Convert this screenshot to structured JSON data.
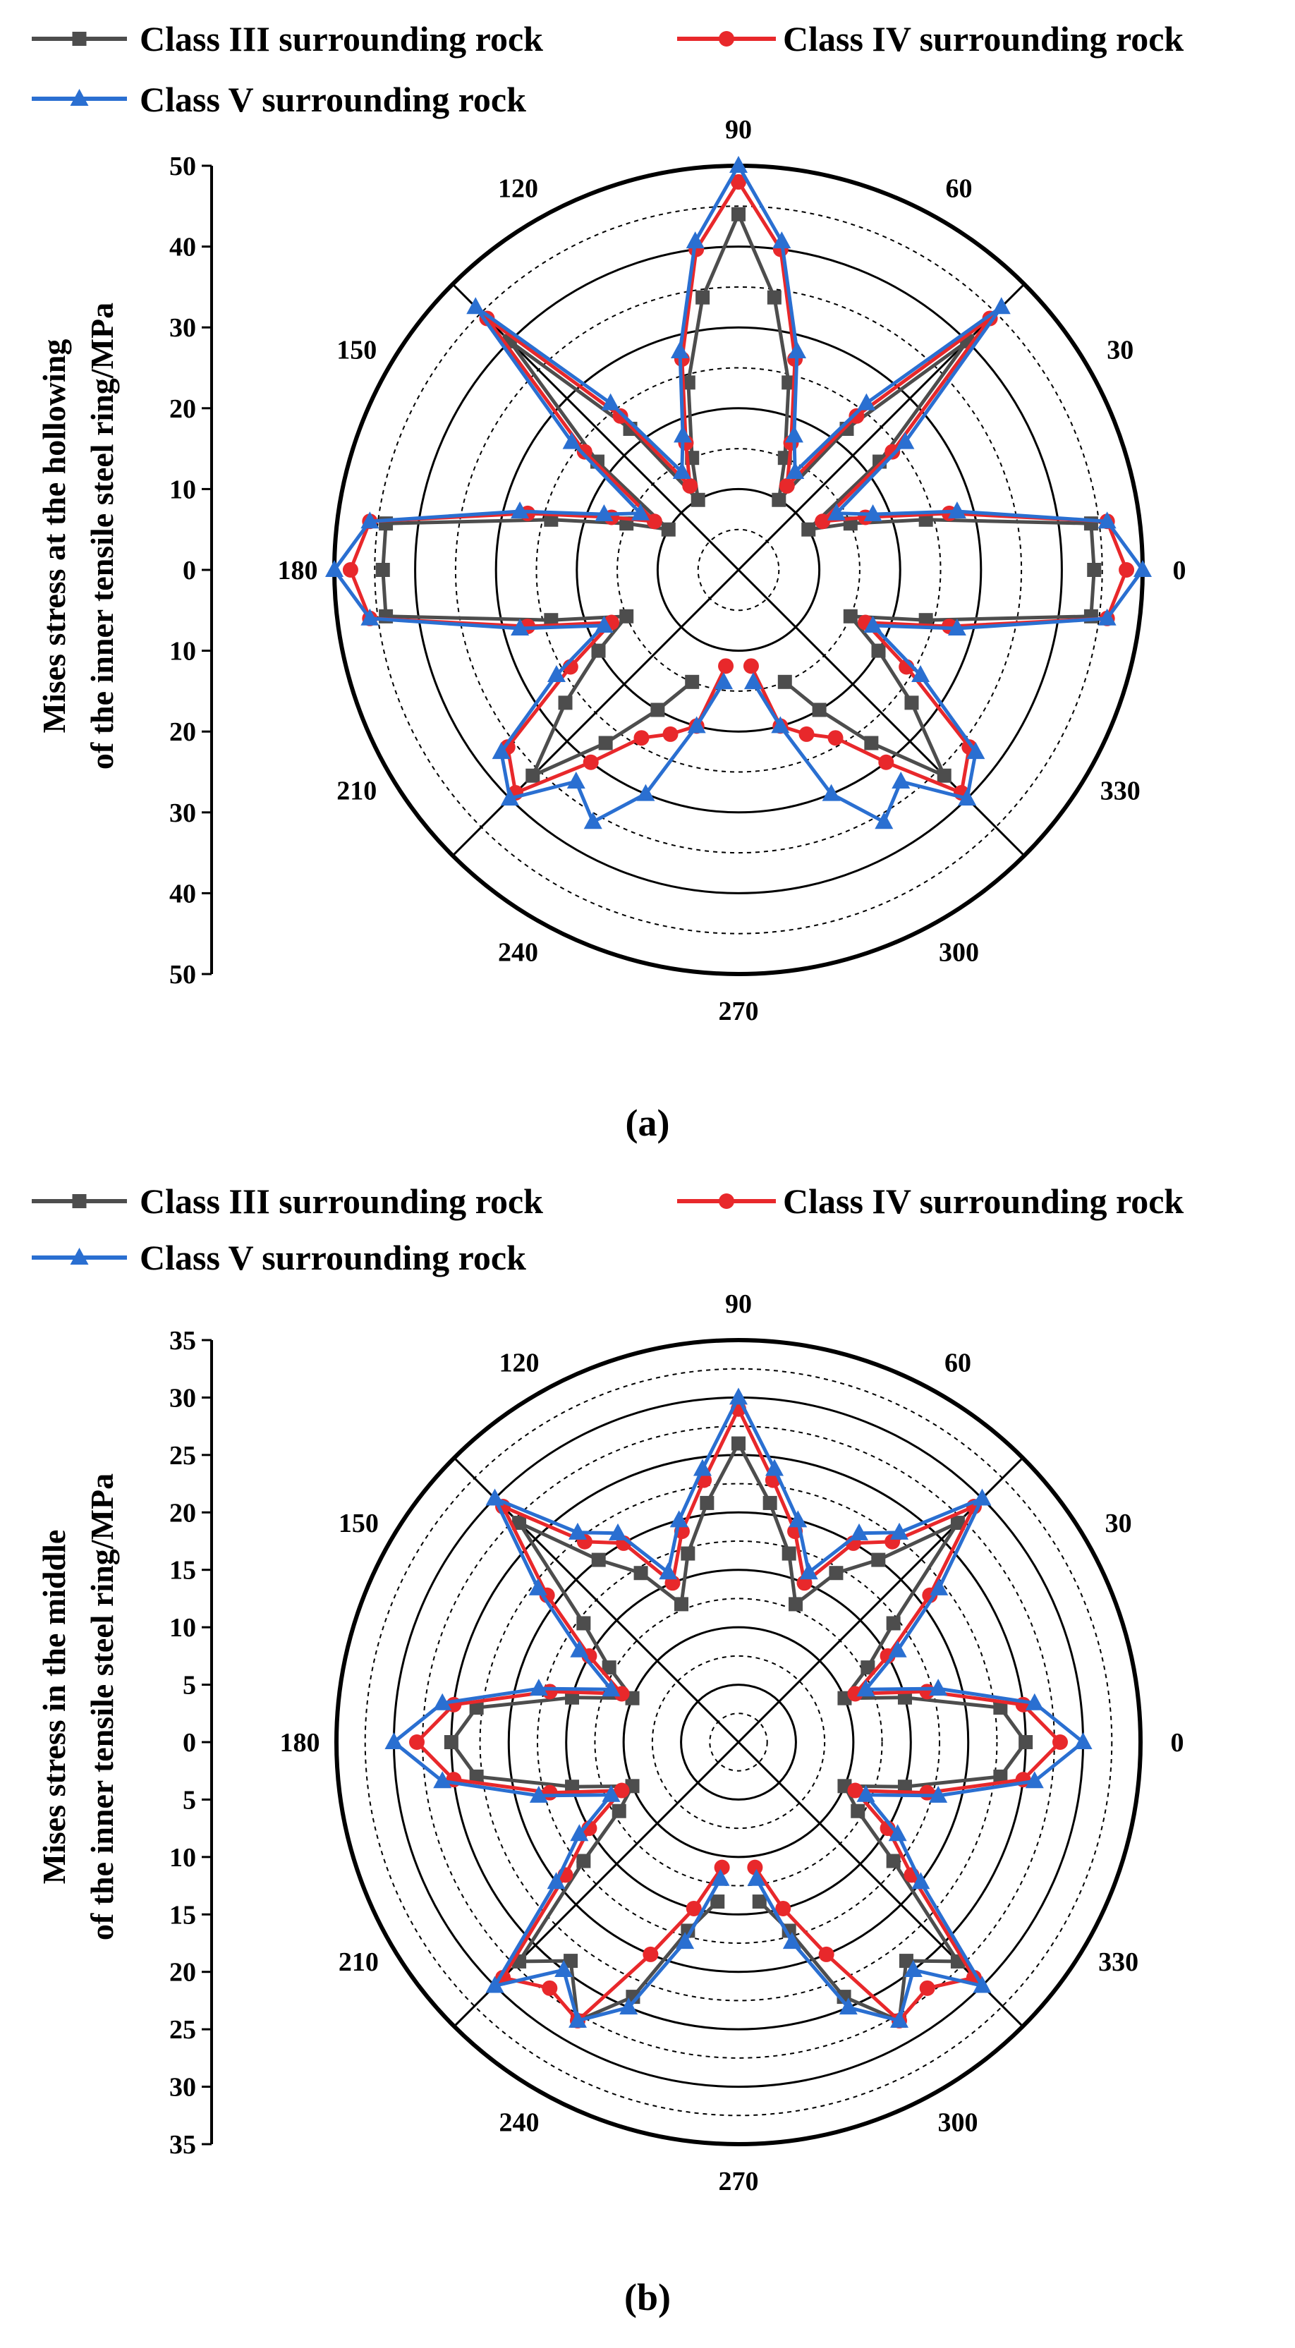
{
  "legend": {
    "series": [
      {
        "name": "Class III surrounding rock",
        "color": "#4d4d4d",
        "marker": "square"
      },
      {
        "name": "Class IV surrounding rock",
        "color": "#e8282b",
        "marker": "circle"
      },
      {
        "name": "Class V surrounding rock",
        "color": "#2a6fd1",
        "marker": "triangle"
      }
    ]
  },
  "angle_labels": [
    "0",
    "30",
    "60",
    "90",
    "120",
    "150",
    "180",
    "210",
    "240",
    "270",
    "300",
    "330"
  ],
  "chart_data": [
    {
      "type": "polar-line",
      "caption": "(a)",
      "ylabel_line1": "Mises stress at the hollowing",
      "ylabel_line2": "of the inner tensile steel ring/MPa",
      "rlim": [
        0,
        50
      ],
      "radial_ticks_upper": [
        "50",
        "40",
        "30",
        "20",
        "10",
        "0"
      ],
      "radial_ticks_lower": [
        "10",
        "20",
        "30",
        "40",
        "50"
      ],
      "grid": true,
      "angles_deg": [
        0,
        7.5,
        15,
        22.5,
        30,
        37.5,
        45,
        52.5,
        60,
        67.5,
        75,
        82.5,
        90,
        97.5,
        105,
        112.5,
        120,
        127.5,
        135,
        142.5,
        150,
        157.5,
        165,
        172.5,
        180,
        187.5,
        195,
        202.5,
        210,
        217.5,
        225,
        232.5,
        240,
        247.5,
        255,
        262.5,
        270,
        277.5,
        285,
        292.5,
        300,
        307.5,
        315,
        322.5,
        330,
        337.5,
        345,
        352.5
      ],
      "series": [
        {
          "name": "Class III surrounding rock",
          "values": [
            44,
            44,
            24,
            15,
            10,
            22,
            40,
            22,
            10,
            15,
            24,
            34,
            44,
            34,
            24,
            15,
            10,
            22,
            40,
            22,
            10,
            15,
            24,
            44,
            44,
            44,
            24,
            15,
            20,
            27,
            36,
            27,
            20,
            15,
            null,
            null,
            null,
            null,
            null,
            15,
            20,
            27,
            36,
            27,
            20,
            15,
            24,
            44
          ]
        },
        {
          "name": "Class IV surrounding rock",
          "values": [
            48,
            46,
            27,
            17,
            12,
            24,
            44,
            24,
            12,
            17,
            27,
            40,
            48,
            40,
            27,
            17,
            12,
            24,
            44,
            24,
            12,
            17,
            27,
            46,
            48,
            46,
            27,
            17,
            24,
            36,
            39,
            30,
            24,
            22,
            20,
            12,
            null,
            12,
            20,
            22,
            24,
            30,
            39,
            36,
            24,
            17,
            27,
            46
          ]
        },
        {
          "name": "Class V surrounding rock",
          "values": [
            50,
            46,
            28,
            18,
            14,
            26,
            46,
            26,
            14,
            18,
            28,
            41,
            50,
            41,
            28,
            18,
            14,
            26,
            46,
            26,
            14,
            18,
            28,
            46,
            50,
            46,
            28,
            18,
            26,
            37,
            40,
            33,
            36,
            30,
            20,
            14,
            null,
            14,
            20,
            30,
            36,
            33,
            40,
            37,
            26,
            18,
            28,
            46
          ]
        }
      ]
    },
    {
      "type": "polar-line",
      "caption": "(b)",
      "ylabel_line1": "Mises stress in the middle",
      "ylabel_line2": "of the inner tensile steel ring/MPa",
      "rlim": [
        0,
        35
      ],
      "radial_ticks_upper": [
        "35",
        "30",
        "25",
        "20",
        "15",
        "10",
        "5",
        "0"
      ],
      "radial_ticks_lower": [
        "5",
        "10",
        "15",
        "20",
        "25",
        "30",
        "35"
      ],
      "grid": true,
      "angles_deg": [
        0,
        7.5,
        15,
        22.5,
        30,
        37.5,
        45,
        52.5,
        60,
        67.5,
        75,
        82.5,
        90,
        97.5,
        105,
        112.5,
        120,
        127.5,
        135,
        142.5,
        150,
        157.5,
        165,
        172.5,
        180,
        187.5,
        195,
        202.5,
        210,
        217.5,
        225,
        232.5,
        240,
        247.5,
        255,
        262.5,
        270,
        277.5,
        285,
        292.5,
        300,
        307.5,
        315,
        322.5,
        330,
        337.5,
        345,
        352.5
      ],
      "series": [
        {
          "name": "Class III surrounding rock",
          "values": [
            25,
            23,
            15,
            10,
            13,
            17,
            27,
            20,
            17,
            13,
            17,
            21,
            26,
            21,
            17,
            13,
            17,
            20,
            27,
            17,
            13,
            10,
            15,
            23,
            25,
            23,
            15,
            10,
            12,
            17,
            27,
            24,
            28,
            24,
            17,
            14,
            null,
            14,
            17,
            24,
            28,
            24,
            27,
            17,
            12,
            10,
            15,
            23
          ]
        },
        {
          "name": "Class IV surrounding rock",
          "values": [
            28,
            25,
            17,
            11,
            15,
            21,
            29,
            22,
            20,
            15,
            19,
            23,
            29,
            23,
            19,
            15,
            20,
            22,
            29,
            21,
            15,
            11,
            17,
            25,
            28,
            25,
            17,
            11,
            15,
            19,
            29,
            27,
            28,
            20,
            15,
            11,
            null,
            11,
            15,
            20,
            28,
            27,
            29,
            19,
            15,
            11,
            17,
            25
          ]
        },
        {
          "name": "Class V surrounding rock",
          "values": [
            30,
            26,
            18,
            12,
            16,
            22,
            30,
            23,
            21,
            16,
            20,
            24,
            30,
            24,
            20,
            16,
            21,
            23,
            30,
            22,
            16,
            12,
            18,
            26,
            30,
            26,
            18,
            12,
            16,
            20,
            30,
            25,
            28,
            25,
            18,
            12,
            null,
            12,
            18,
            25,
            28,
            25,
            30,
            20,
            16,
            12,
            18,
            26
          ]
        }
      ]
    }
  ]
}
